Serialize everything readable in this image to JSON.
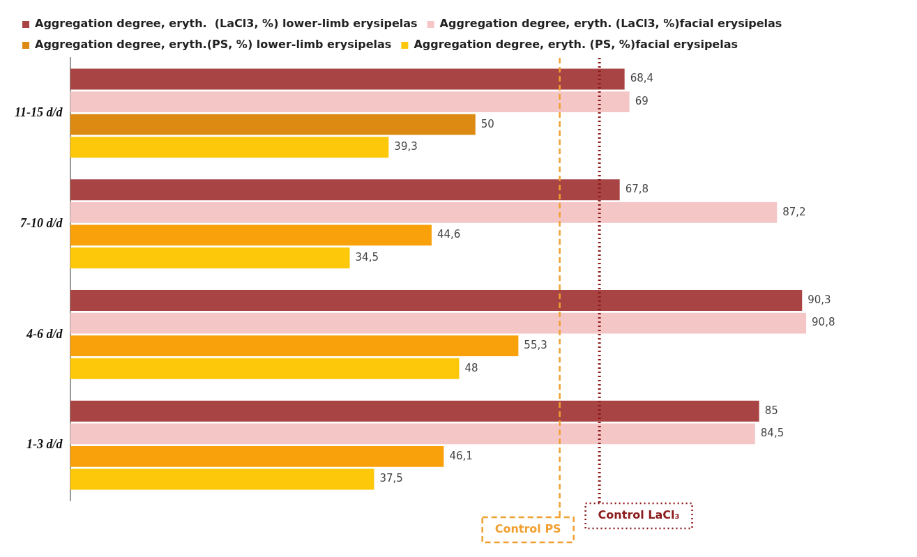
{
  "chart_data": {
    "type": "bar",
    "orientation": "horizontal",
    "categories": [
      "11-15 d/d",
      "7-10 d/d",
      "4-6 d/d",
      "1-3 d/d"
    ],
    "series": [
      {
        "name": "Aggregation degree, eryth.  (LaCl3, %) lower-limb erysipelas",
        "color": "#a84444",
        "values": [
          68.4,
          67.8,
          90.3,
          85
        ],
        "value_labels": [
          "68,4",
          "67,8",
          "90,3",
          "85"
        ]
      },
      {
        "name": "Aggregation degree, eryth. (LaCl3, %)facial erysipelas",
        "color": "#f5c6c6",
        "values": [
          69,
          87.2,
          90.8,
          84.5
        ],
        "value_labels": [
          "69",
          "87,2",
          "90,8",
          "84,5"
        ]
      },
      {
        "name": "Aggregation degree, eryth.(PS, %) lower-limb erysipelas",
        "color": "#f9a10b",
        "colors": [
          "#dc8a12",
          "#f9a10b",
          "#f9a10b",
          "#f9a10b"
        ],
        "values": [
          50,
          44.6,
          55.3,
          46.1
        ],
        "value_labels": [
          "50",
          "44,6",
          "55,3",
          "46,1"
        ]
      },
      {
        "name": "Aggregation degree, eryth. (PS, %)facial erysipelas",
        "color": "#fec80a",
        "values": [
          39.3,
          34.5,
          48,
          37.5
        ],
        "value_labels": [
          "39,3",
          "34,5",
          "48",
          "37,5"
        ]
      }
    ],
    "ref_lines": [
      {
        "axis": "x",
        "value": 60.4,
        "label": "Control PS",
        "color": "#f0a030",
        "line_style": "dashed"
      },
      {
        "axis": "x",
        "value": 65.3,
        "label": "Control LaCl₃",
        "color": "#8b1a1a",
        "line_style": "dotted"
      }
    ],
    "legend": "top",
    "grid": false
  }
}
